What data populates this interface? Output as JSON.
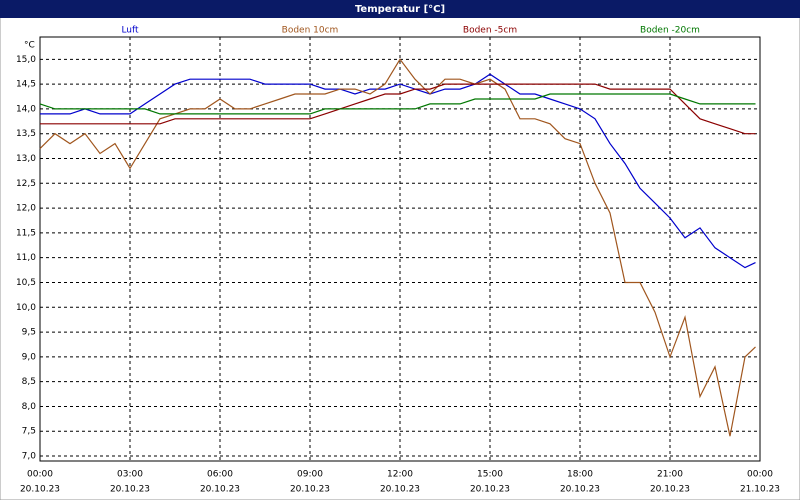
{
  "chart_data": {
    "type": "line",
    "title": "Temperatur [°C]",
    "y_unit": "°C",
    "x": [
      0,
      0.5,
      1,
      1.5,
      2,
      2.5,
      3,
      3.5,
      4,
      4.5,
      5,
      5.5,
      6,
      6.5,
      7,
      7.5,
      8,
      8.5,
      9,
      9.5,
      10,
      10.5,
      11,
      11.5,
      12,
      12.5,
      13,
      13.5,
      14,
      14.5,
      15,
      15.5,
      16,
      16.5,
      17,
      17.5,
      18,
      18.5,
      19,
      19.5,
      20,
      20.5,
      21,
      21.5,
      22,
      22.5,
      23,
      23.5,
      23.85
    ],
    "series": [
      {
        "name": "Luft",
        "color": "#0000cc",
        "values": [
          13.9,
          13.9,
          13.9,
          14.0,
          13.9,
          13.9,
          13.9,
          14.1,
          14.3,
          14.5,
          14.6,
          14.6,
          14.6,
          14.6,
          14.6,
          14.5,
          14.5,
          14.5,
          14.5,
          14.4,
          14.4,
          14.3,
          14.4,
          14.4,
          14.5,
          14.4,
          14.3,
          14.4,
          14.4,
          14.5,
          14.7,
          14.5,
          14.3,
          14.3,
          14.2,
          14.1,
          14.0,
          13.8,
          13.3,
          12.9,
          12.4,
          12.1,
          11.8,
          11.4,
          11.6,
          11.2,
          11.0,
          10.8,
          10.9
        ]
      },
      {
        "name": "Boden 10cm",
        "color": "#a0561e",
        "values": [
          13.2,
          13.5,
          13.3,
          13.5,
          13.1,
          13.3,
          12.8,
          13.3,
          13.8,
          13.9,
          14.0,
          14.0,
          14.2,
          14.0,
          14.0,
          14.1,
          14.2,
          14.3,
          14.3,
          14.3,
          14.4,
          14.4,
          14.3,
          14.5,
          15.0,
          14.6,
          14.3,
          14.6,
          14.6,
          14.5,
          14.6,
          14.4,
          13.8,
          13.8,
          13.7,
          13.4,
          13.3,
          12.5,
          11.9,
          10.5,
          10.5,
          9.9,
          9.0,
          9.8,
          8.2,
          8.8,
          7.4,
          9.0,
          9.2
        ]
      },
      {
        "name": "Boden -5cm",
        "color": "#8b0000",
        "values": [
          13.7,
          13.7,
          13.7,
          13.7,
          13.7,
          13.7,
          13.7,
          13.7,
          13.7,
          13.8,
          13.8,
          13.8,
          13.8,
          13.8,
          13.8,
          13.8,
          13.8,
          13.8,
          13.8,
          13.9,
          14.0,
          14.1,
          14.2,
          14.3,
          14.3,
          14.4,
          14.4,
          14.5,
          14.5,
          14.5,
          14.5,
          14.5,
          14.5,
          14.5,
          14.5,
          14.5,
          14.5,
          14.5,
          14.4,
          14.4,
          14.4,
          14.4,
          14.4,
          14.1,
          13.8,
          13.7,
          13.6,
          13.5,
          13.5
        ]
      },
      {
        "name": "Boden -20cm",
        "color": "#007700",
        "values": [
          14.1,
          14.0,
          14.0,
          14.0,
          14.0,
          14.0,
          14.0,
          14.0,
          13.9,
          13.9,
          13.9,
          13.9,
          13.9,
          13.9,
          13.9,
          13.9,
          13.9,
          13.9,
          13.9,
          14.0,
          14.0,
          14.0,
          14.0,
          14.0,
          14.0,
          14.0,
          14.1,
          14.1,
          14.1,
          14.2,
          14.2,
          14.2,
          14.2,
          14.2,
          14.3,
          14.3,
          14.3,
          14.3,
          14.3,
          14.3,
          14.3,
          14.3,
          14.3,
          14.2,
          14.1,
          14.1,
          14.1,
          14.1,
          14.1
        ]
      }
    ],
    "xlim": [
      0,
      24
    ],
    "xticks": [
      {
        "value": 0,
        "label": "00:00"
      },
      {
        "value": 3,
        "label": "03:00"
      },
      {
        "value": 6,
        "label": "06:00"
      },
      {
        "value": 9,
        "label": "09:00"
      },
      {
        "value": 12,
        "label": "12:00"
      },
      {
        "value": 15,
        "label": "15:00"
      },
      {
        "value": 18,
        "label": "18:00"
      },
      {
        "value": 21,
        "label": "21:00"
      },
      {
        "value": 24,
        "label": "00:00"
      }
    ],
    "xtick_dates": [
      "20.10.23",
      "20.10.23",
      "20.10.23",
      "20.10.23",
      "20.10.23",
      "20.10.23",
      "20.10.23",
      "20.10.23",
      "21.10.23"
    ],
    "ylim": [
      6.9,
      15.45
    ],
    "yticks": [
      {
        "value": 7,
        "label": "7,0"
      },
      {
        "value": 7.5,
        "label": "7,5"
      },
      {
        "value": 8,
        "label": "8,0"
      },
      {
        "value": 8.5,
        "label": "8,5"
      },
      {
        "value": 9,
        "label": "9,0"
      },
      {
        "value": 9.5,
        "label": "9,5"
      },
      {
        "value": 10,
        "label": "10,0"
      },
      {
        "value": 10.5,
        "label": "10,5"
      },
      {
        "value": 11,
        "label": "11,0"
      },
      {
        "value": 11.5,
        "label": "11,5"
      },
      {
        "value": 12,
        "label": "12,0"
      },
      {
        "value": 12.5,
        "label": "12,5"
      },
      {
        "value": 13,
        "label": "13,0"
      },
      {
        "value": 13.5,
        "label": "13,5"
      },
      {
        "value": 14,
        "label": "14,0"
      },
      {
        "value": 14.5,
        "label": "14,5"
      },
      {
        "value": 15,
        "label": "15,0"
      }
    ],
    "grid": true
  }
}
